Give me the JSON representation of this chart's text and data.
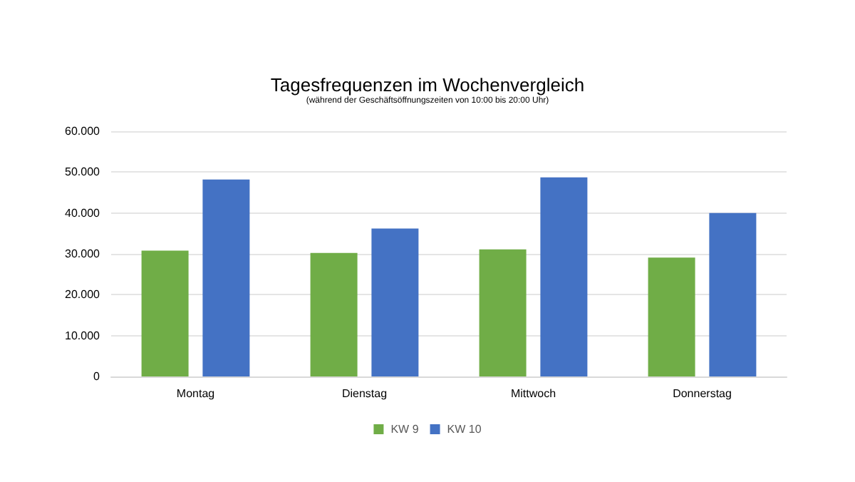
{
  "chart_data": {
    "type": "bar",
    "title": "Tagesfrequenzen im Wochenvergleich",
    "subtitle": "(während der Geschäftsöffnungszeiten von 10:00 bis 20:00 Uhr)",
    "categories": [
      "Montag",
      "Dienstag",
      "Mittwoch",
      "Donnerstag"
    ],
    "series": [
      {
        "name": "KW 9",
        "color": "#70ad47",
        "values": [
          30800,
          30200,
          31100,
          29100
        ]
      },
      {
        "name": "KW 10",
        "color": "#4472c4",
        "values": [
          48200,
          36200,
          48700,
          40000
        ]
      }
    ],
    "ylim": [
      0,
      60000
    ],
    "yticks": [
      0,
      {
        "value": 10000,
        "label": "10.000"
      },
      {
        "value": 20000,
        "label": "20.000"
      },
      {
        "value": 30000,
        "label": "30.000"
      },
      {
        "value": 40000,
        "label": "40.000"
      },
      {
        "value": 50000,
        "label": "50.000"
      },
      {
        "value": 60000,
        "label": "60.000"
      }
    ],
    "grid": "y",
    "legend": "bottom"
  }
}
